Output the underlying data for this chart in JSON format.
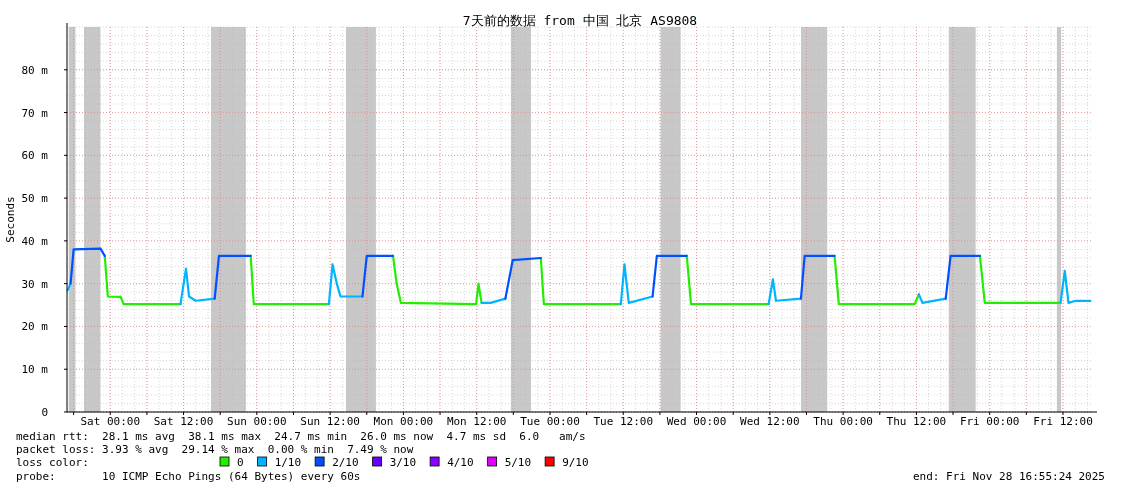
{
  "chart_data": {
    "type": "line",
    "title": "7天前的数据 from 中国 北京 AS9808",
    "ylabel": "Seconds",
    "x": [
      "2025-11-21T17:02",
      "2025-11-21T17:30",
      "2025-11-21T18:00",
      "2025-11-21T22:24",
      "2025-11-21T23:06",
      "2025-11-21T23:36",
      "2025-11-22T01:42",
      "2025-11-22T02:12",
      "2025-11-22T11:30",
      "2025-11-22T12:24",
      "2025-11-22T12:54",
      "2025-11-22T14:00",
      "2025-11-22T17:06",
      "2025-11-22T17:48",
      "2025-11-22T23:00",
      "2025-11-22T23:30",
      "2025-11-23T11:48",
      "2025-11-23T12:24",
      "2025-11-23T13:06",
      "2025-11-23T13:42",
      "2025-11-23T17:18",
      "2025-11-23T18:00",
      "2025-11-23T22:18",
      "2025-11-23T22:54",
      "2025-11-23T23:36",
      "2025-11-24T11:54",
      "2025-11-24T12:18",
      "2025-11-24T12:48",
      "2025-11-24T14:18",
      "2025-11-24T16:42",
      "2025-11-24T17:54",
      "2025-11-24T22:30",
      "2025-11-24T23:00",
      "2025-11-25T11:36",
      "2025-11-25T12:12",
      "2025-11-25T12:54",
      "2025-11-25T16:48",
      "2025-11-25T17:30",
      "2025-11-25T22:24",
      "2025-11-25T23:06",
      "2025-11-26T11:48",
      "2025-11-26T12:30",
      "2025-11-26T13:00",
      "2025-11-26T17:06",
      "2025-11-26T17:42",
      "2025-11-26T22:36",
      "2025-11-26T23:18",
      "2025-11-27T11:42",
      "2025-11-27T12:24",
      "2025-11-27T13:00",
      "2025-11-27T16:48",
      "2025-11-27T17:36",
      "2025-11-27T22:24",
      "2025-11-27T23:12",
      "2025-11-28T11:36",
      "2025-11-28T12:18",
      "2025-11-28T12:54",
      "2025-11-28T14:06",
      "2025-11-28T16:30"
    ],
    "series": [
      {
        "name": "0",
        "color": "#22ee00",
        "values": [
          null,
          null,
          null,
          null,
          null,
          27,
          26.9,
          25.2,
          25.2,
          null,
          null,
          null,
          null,
          null,
          null,
          25.2,
          25.2,
          null,
          null,
          null,
          null,
          null,
          null,
          30,
          25.5,
          25.2,
          30,
          25.5,
          null,
          null,
          null,
          null,
          25.2,
          25.2,
          null,
          null,
          null,
          null,
          null,
          25.2,
          25.2,
          null,
          null,
          null,
          null,
          null,
          25.2,
          25.2,
          27.5,
          null,
          null,
          null,
          null,
          25.5,
          25.5,
          null,
          null,
          null,
          null
        ]
      },
      {
        "name": "1/10",
        "color": "#00b4ff",
        "values": [
          28.5,
          30,
          null,
          null,
          null,
          null,
          null,
          null,
          null,
          33.5,
          27,
          26,
          26.5,
          null,
          null,
          null,
          null,
          34.5,
          30,
          27,
          27,
          null,
          null,
          null,
          null,
          null,
          null,
          null,
          25.5,
          26.5,
          null,
          null,
          null,
          null,
          34.5,
          25.5,
          27,
          null,
          null,
          null,
          null,
          31,
          26,
          26.5,
          null,
          null,
          null,
          null,
          null,
          25.5,
          26.5,
          null,
          null,
          null,
          null,
          33,
          25.5,
          26,
          26
        ]
      },
      {
        "name": "2/10",
        "color": "#0050ff",
        "values": [
          null,
          null,
          38,
          38.2,
          36.5,
          null,
          null,
          null,
          null,
          null,
          null,
          null,
          null,
          36.5,
          36.5,
          null,
          null,
          null,
          null,
          null,
          null,
          36.5,
          36.5,
          null,
          null,
          null,
          null,
          null,
          null,
          null,
          35.5,
          36,
          null,
          null,
          null,
          null,
          null,
          36.5,
          36.5,
          null,
          null,
          null,
          null,
          null,
          36.5,
          36.5,
          null,
          null,
          null,
          null,
          null,
          36.5,
          36.5,
          null,
          null,
          null,
          null,
          null,
          null
        ]
      },
      {
        "name": "3/10",
        "color": "#6a00ff",
        "values": [
          null,
          null,
          null,
          null,
          null,
          null,
          null,
          null,
          null,
          null,
          null,
          null,
          null,
          null,
          null,
          null,
          null,
          null,
          null,
          null,
          null,
          null,
          null,
          null,
          null,
          null,
          null,
          null,
          null,
          null,
          null,
          null,
          null,
          null,
          null,
          null,
          null,
          null,
          null,
          null,
          null,
          null,
          null,
          null,
          null,
          null,
          null,
          null,
          null,
          null,
          null,
          null,
          null,
          null,
          null,
          null,
          null,
          null,
          null
        ]
      },
      {
        "name": "4/10",
        "color": "#8a00ff",
        "values": [
          null,
          null,
          null,
          null,
          null,
          null,
          null,
          null,
          null,
          null,
          null,
          null,
          null,
          null,
          null,
          null,
          null,
          null,
          null,
          null,
          null,
          null,
          null,
          null,
          null,
          null,
          null,
          null,
          null,
          null,
          null,
          null,
          null,
          null,
          null,
          null,
          null,
          null,
          null,
          null,
          null,
          null,
          null,
          null,
          null,
          null,
          null,
          null,
          null,
          null,
          null,
          null,
          null,
          null,
          null,
          null,
          null,
          null,
          null
        ]
      },
      {
        "name": "5/10",
        "color": "#e000ff",
        "values": [
          null,
          null,
          null,
          null,
          null,
          null,
          null,
          null,
          null,
          null,
          null,
          null,
          null,
          null,
          null,
          null,
          null,
          null,
          null,
          null,
          null,
          null,
          null,
          null,
          null,
          null,
          null,
          null,
          null,
          null,
          null,
          null,
          null,
          null,
          null,
          null,
          null,
          null,
          null,
          null,
          null,
          null,
          null,
          null,
          null,
          null,
          null,
          null,
          null,
          null,
          null,
          null,
          null,
          null,
          null,
          null,
          null,
          null,
          null
        ]
      },
      {
        "name": "9/10",
        "color": "#ff0000",
        "values": [
          null,
          null,
          null,
          null,
          null,
          null,
          null,
          null,
          null,
          null,
          null,
          null,
          null,
          null,
          null,
          null,
          null,
          null,
          null,
          null,
          null,
          null,
          null,
          null,
          null,
          null,
          null,
          null,
          null,
          null,
          null,
          null,
          null,
          null,
          null,
          null,
          null,
          null,
          null,
          null,
          null,
          null,
          null,
          null,
          null,
          null,
          null,
          null,
          null,
          null,
          null,
          null,
          null,
          null,
          null,
          null,
          null,
          null,
          null
        ]
      }
    ],
    "bands": [
      {
        "axis": "x",
        "from": "2025-11-21T17:12",
        "to": "2025-11-21T18:18",
        "color": "#c8c8c8"
      },
      {
        "axis": "x",
        "from": "2025-11-21T19:42",
        "to": "2025-11-21T22:24",
        "color": "#c8c8c8"
      },
      {
        "axis": "x",
        "from": "2025-11-22T16:30",
        "to": "2025-11-22T22:12",
        "color": "#c8c8c8"
      },
      {
        "axis": "x",
        "from": "2025-11-23T14:36",
        "to": "2025-11-23T19:30",
        "color": "#c8c8c8"
      },
      {
        "axis": "x",
        "from": "2025-11-24T17:36",
        "to": "2025-11-24T20:54",
        "color": "#c8c8c8"
      },
      {
        "axis": "x",
        "from": "2025-11-25T18:06",
        "to": "2025-11-25T21:24",
        "color": "#c8c8c8"
      },
      {
        "axis": "x",
        "from": "2025-11-26T17:06",
        "to": "2025-11-26T21:24",
        "color": "#c8c8c8"
      },
      {
        "axis": "x",
        "from": "2025-11-27T17:18",
        "to": "2025-11-27T21:42",
        "color": "#c8c8c8"
      },
      {
        "axis": "x",
        "from": "2025-11-28T11:00",
        "to": "2025-11-28T11:42",
        "color": "#c8c8c8"
      }
    ],
    "xlim": [
      "2025-11-21T16:55",
      "2025-11-28T16:55"
    ],
    "xticks": [
      {
        "value": "2025-11-21T18:00",
        "label": null
      },
      {
        "value": "2025-11-22T00:00",
        "label": "Sat 00:00"
      },
      {
        "value": "2025-11-22T06:00",
        "label": null
      },
      {
        "value": "2025-11-22T12:00",
        "label": "Sat 12:00"
      },
      {
        "value": "2025-11-22T18:00",
        "label": null
      },
      {
        "value": "2025-11-23T00:00",
        "label": "Sun 00:00"
      },
      {
        "value": "2025-11-23T06:00",
        "label": null
      },
      {
        "value": "2025-11-23T12:00",
        "label": "Sun 12:00"
      },
      {
        "value": "2025-11-23T18:00",
        "label": null
      },
      {
        "value": "2025-11-24T00:00",
        "label": "Mon 00:00"
      },
      {
        "value": "2025-11-24T06:00",
        "label": null
      },
      {
        "value": "2025-11-24T12:00",
        "label": "Mon 12:00"
      },
      {
        "value": "2025-11-24T18:00",
        "label": null
      },
      {
        "value": "2025-11-25T00:00",
        "label": "Tue 00:00"
      },
      {
        "value": "2025-11-25T06:00",
        "label": null
      },
      {
        "value": "2025-11-25T12:00",
        "label": "Tue 12:00"
      },
      {
        "value": "2025-11-25T18:00",
        "label": null
      },
      {
        "value": "2025-11-26T00:00",
        "label": "Wed 00:00"
      },
      {
        "value": "2025-11-26T06:00",
        "label": null
      },
      {
        "value": "2025-11-26T12:00",
        "label": "Wed 12:00"
      },
      {
        "value": "2025-11-26T18:00",
        "label": null
      },
      {
        "value": "2025-11-27T00:00",
        "label": "Thu 00:00"
      },
      {
        "value": "2025-11-27T06:00",
        "label": null
      },
      {
        "value": "2025-11-27T12:00",
        "label": "Thu 12:00"
      },
      {
        "value": "2025-11-27T18:00",
        "label": null
      },
      {
        "value": "2025-11-28T00:00",
        "label": "Fri 00:00"
      },
      {
        "value": "2025-11-28T06:00",
        "label": null
      },
      {
        "value": "2025-11-28T12:00",
        "label": "Fri 12:00"
      }
    ],
    "ylim": [
      0,
      90
    ],
    "yticks": [
      0,
      {
        "value": 10,
        "label": "10 m"
      },
      {
        "value": 20,
        "label": "20 m"
      },
      {
        "value": 30,
        "label": "30 m"
      },
      {
        "value": 40,
        "label": "40 m"
      },
      {
        "value": 50,
        "label": "50 m"
      },
      {
        "value": 60,
        "label": "60 m"
      },
      {
        "value": 70,
        "label": "70 m"
      },
      {
        "value": 80,
        "label": "80 m"
      }
    ],
    "grid": true,
    "legend": "bottom",
    "legend_title": "loss color:",
    "line_style": "solid",
    "marker": "none",
    "annotations": [
      "median rtt:  28.1 ms avg  38.1 ms max  24.7 ms min  26.0 ms now  4.7 ms sd  6.0   am/s",
      "packet loss: 3.93 % avg  29.14 % max  0.00 % min  7.49 % now",
      "probe:       10 ICMP Echo Pings (64 Bytes) every 60s",
      "end: Fri Nov 28 16:55:24 2025"
    ]
  }
}
